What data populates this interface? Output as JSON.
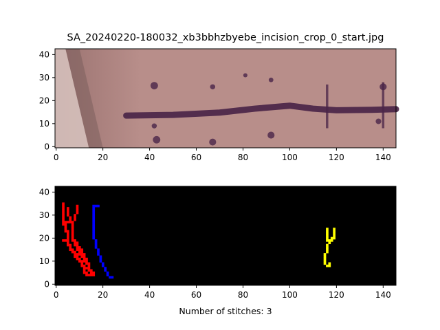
{
  "figure": {
    "background": "#ffffff",
    "axis_color": "#000000"
  },
  "chart_data": [
    {
      "type": "image",
      "title": "SA_20240220-180032_xb3bbhzbyebe_incision_crop_0_start.jpg",
      "xlabel": "",
      "ylabel": "",
      "xlim": [
        -0.5,
        145.5
      ],
      "ylim": [
        42.5,
        -0.5
      ],
      "xticks": [
        0,
        20,
        40,
        60,
        80,
        100,
        120,
        140
      ],
      "yticks": [
        0,
        10,
        20,
        30,
        40
      ],
      "grid": false,
      "content": "photo",
      "photo": {
        "skin_color": "#b88e8a",
        "skin_shadow_color": "#9a7270",
        "skin_highlight_color": "#d8c4c0",
        "ink_color": "#4a2548",
        "incision_line": [
          [
            30,
            13.5
          ],
          [
            50,
            13.8
          ],
          [
            70,
            14.8
          ],
          [
            85,
            16.5
          ],
          [
            100,
            17.8
          ],
          [
            110,
            16.5
          ],
          [
            120,
            15.8
          ],
          [
            135,
            16.0
          ],
          [
            145.5,
            16.3
          ]
        ],
        "marks": [
          {
            "x": 43,
            "y": 3,
            "r": 1.6
          },
          {
            "x": 42,
            "y": 9,
            "r": 1.1
          },
          {
            "x": 42,
            "y": 26.5,
            "r": 1.6
          },
          {
            "x": 67,
            "y": 2,
            "r": 1.5
          },
          {
            "x": 67,
            "y": 26,
            "r": 1.1
          },
          {
            "x": 92,
            "y": 5,
            "r": 1.5
          },
          {
            "x": 92,
            "y": 29,
            "r": 1.0
          },
          {
            "x": 81,
            "y": 31,
            "r": 0.9
          },
          {
            "x": 138,
            "y": 11,
            "r": 1.2
          },
          {
            "x": 140,
            "y": 26,
            "r": 1.5
          }
        ],
        "stitch_lines": [
          {
            "x": 116,
            "y0": 8,
            "y1": 27
          },
          {
            "x": 140,
            "y0": 8,
            "y1": 28
          }
        ]
      }
    },
    {
      "type": "image",
      "title": "",
      "xlabel": "Number of stitches: 3",
      "ylabel": "",
      "xlim": [
        -0.5,
        145.5
      ],
      "ylim": [
        42.5,
        -0.5
      ],
      "xticks": [
        0,
        20,
        40,
        60,
        80,
        100,
        120,
        140
      ],
      "yticks": [
        0,
        10,
        20,
        30,
        40
      ],
      "grid": false,
      "content": "mask",
      "background": "#000000",
      "stitches": [
        {
          "color": "#ff0000",
          "cells": [
            [
              13,
              5
            ],
            [
              14,
              5
            ],
            [
              15,
              5
            ],
            [
              16,
              5
            ],
            [
              12,
              6
            ],
            [
              13,
              6
            ],
            [
              15,
              6
            ],
            [
              16,
              6
            ],
            [
              12,
              7
            ],
            [
              14,
              7
            ],
            [
              15,
              7
            ],
            [
              12,
              8
            ],
            [
              13,
              8
            ],
            [
              14,
              8
            ],
            [
              11,
              9
            ],
            [
              12,
              9
            ],
            [
              14,
              9
            ],
            [
              11,
              10
            ],
            [
              13,
              10
            ],
            [
              14,
              10
            ],
            [
              10,
              11
            ],
            [
              11,
              11
            ],
            [
              12,
              11
            ],
            [
              13,
              11
            ],
            [
              9,
              12
            ],
            [
              10,
              12
            ],
            [
              12,
              12
            ],
            [
              13,
              12
            ],
            [
              8,
              13
            ],
            [
              9,
              13
            ],
            [
              11,
              13
            ],
            [
              12,
              13
            ],
            [
              8,
              14
            ],
            [
              9,
              14
            ],
            [
              10,
              14
            ],
            [
              11,
              14
            ],
            [
              12,
              14
            ],
            [
              7,
              15
            ],
            [
              8,
              15
            ],
            [
              10,
              15
            ],
            [
              11,
              15
            ],
            [
              6,
              16
            ],
            [
              7,
              16
            ],
            [
              9,
              16
            ],
            [
              10,
              16
            ],
            [
              11,
              16
            ],
            [
              6,
              17
            ],
            [
              9,
              17
            ],
            [
              10,
              17
            ],
            [
              5,
              18
            ],
            [
              6,
              18
            ],
            [
              8,
              18
            ],
            [
              9,
              18
            ],
            [
              5,
              19
            ],
            [
              8,
              19
            ],
            [
              9,
              19
            ],
            [
              3,
              20
            ],
            [
              4,
              20
            ],
            [
              5,
              20
            ],
            [
              7,
              20
            ],
            [
              8,
              20
            ],
            [
              5,
              21
            ],
            [
              7,
              21
            ],
            [
              5,
              22
            ],
            [
              7,
              22
            ],
            [
              5,
              23
            ],
            [
              7,
              23
            ],
            [
              4,
              24
            ],
            [
              5,
              24
            ],
            [
              7,
              24
            ],
            [
              4,
              25
            ],
            [
              7,
              25
            ],
            [
              4,
              26
            ],
            [
              7,
              26
            ],
            [
              3,
              27
            ],
            [
              4,
              27
            ],
            [
              7,
              27
            ],
            [
              3,
              28
            ],
            [
              4,
              28
            ],
            [
              5,
              28
            ],
            [
              6,
              28
            ],
            [
              7,
              28
            ],
            [
              3,
              29
            ],
            [
              6,
              29
            ],
            [
              8,
              29
            ],
            [
              3,
              30
            ],
            [
              6,
              30
            ],
            [
              8,
              30
            ],
            [
              3,
              31
            ],
            [
              5,
              31
            ],
            [
              8,
              31
            ],
            [
              3,
              32
            ],
            [
              5,
              32
            ],
            [
              9,
              32
            ],
            [
              3,
              33
            ],
            [
              5,
              33
            ],
            [
              9,
              33
            ],
            [
              3,
              34
            ],
            [
              5,
              34
            ],
            [
              9,
              34
            ],
            [
              3,
              35
            ],
            [
              9,
              35
            ],
            [
              3,
              36
            ]
          ]
        },
        {
          "color": "#0000ff",
          "cells": [
            [
              23,
              4
            ],
            [
              24,
              4
            ],
            [
              22,
              5
            ],
            [
              22,
              6
            ],
            [
              21,
              7
            ],
            [
              21,
              8
            ],
            [
              20,
              9
            ],
            [
              20,
              10
            ],
            [
              19,
              11
            ],
            [
              19,
              12
            ],
            [
              19,
              13
            ],
            [
              18,
              14
            ],
            [
              18,
              15
            ],
            [
              18,
              16
            ],
            [
              17,
              17
            ],
            [
              17,
              18
            ],
            [
              17,
              19
            ],
            [
              17,
              20
            ],
            [
              16,
              21
            ],
            [
              16,
              22
            ],
            [
              16,
              23
            ],
            [
              16,
              24
            ],
            [
              16,
              25
            ],
            [
              16,
              26
            ],
            [
              16,
              27
            ],
            [
              16,
              28
            ],
            [
              16,
              29
            ],
            [
              16,
              30
            ],
            [
              16,
              31
            ],
            [
              16,
              32
            ],
            [
              16,
              33
            ],
            [
              16,
              34
            ],
            [
              16,
              35
            ],
            [
              17,
              35
            ],
            [
              18,
              35
            ]
          ]
        },
        {
          "color": "#ffff00",
          "cells": [
            [
              116,
              9
            ],
            [
              117,
              9
            ],
            [
              115,
              10
            ],
            [
              117,
              10
            ],
            [
              115,
              11
            ],
            [
              115,
              12
            ],
            [
              115,
              13
            ],
            [
              115,
              14
            ],
            [
              116,
              15
            ],
            [
              116,
              16
            ],
            [
              116,
              17
            ],
            [
              116,
              18
            ],
            [
              117,
              19
            ],
            [
              116,
              20
            ],
            [
              117,
              20
            ],
            [
              118,
              20
            ],
            [
              116,
              21
            ],
            [
              118,
              21
            ],
            [
              119,
              21
            ],
            [
              116,
              22
            ],
            [
              119,
              22
            ],
            [
              116,
              23
            ],
            [
              119,
              23
            ],
            [
              116,
              24
            ],
            [
              119,
              24
            ],
            [
              116,
              25
            ],
            [
              119,
              25
            ]
          ]
        }
      ]
    }
  ]
}
